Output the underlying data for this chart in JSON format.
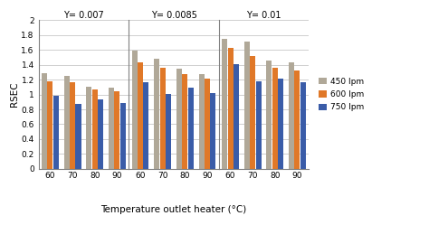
{
  "panels": [
    {
      "title": "Y= 0.007",
      "data": {
        "450 lpm": [
          1.29,
          1.25,
          1.1,
          1.09
        ],
        "600 lpm": [
          1.18,
          1.16,
          1.07,
          1.04
        ],
        "750 lpm": [
          0.98,
          0.87,
          0.93,
          0.89
        ]
      }
    },
    {
      "title": "Y= 0.0085",
      "data": {
        "450 lpm": [
          1.59,
          1.48,
          1.35,
          1.28
        ],
        "600 lpm": [
          1.43,
          1.36,
          1.27,
          1.21
        ],
        "750 lpm": [
          1.16,
          1.01,
          1.09,
          1.02
        ]
      }
    },
    {
      "title": "Y= 0.01",
      "data": {
        "450 lpm": [
          1.75,
          1.71,
          1.46,
          1.43
        ],
        "600 lpm": [
          1.63,
          1.52,
          1.36,
          1.32
        ],
        "750 lpm": [
          1.41,
          1.18,
          1.21,
          1.17
        ]
      }
    }
  ],
  "categories": [
    "60",
    "70",
    "80",
    "90"
  ],
  "colors": {
    "450 lpm": "#B0A898",
    "600 lpm": "#E07828",
    "750 lpm": "#3A5CA8"
  },
  "ylabel": "RSEC",
  "xlabel": "Temperature outlet heater (°C)",
  "ylim": [
    0,
    2.0
  ],
  "yticks": [
    0,
    0.2,
    0.4,
    0.6,
    0.8,
    1.0,
    1.2,
    1.4,
    1.6,
    1.8,
    2.0
  ],
  "legend_labels": [
    "450 lpm",
    "600 lpm",
    "750 lpm"
  ],
  "bar_width": 0.26,
  "background_color": "#FFFFFF",
  "grid_color": "#C8C8C8"
}
